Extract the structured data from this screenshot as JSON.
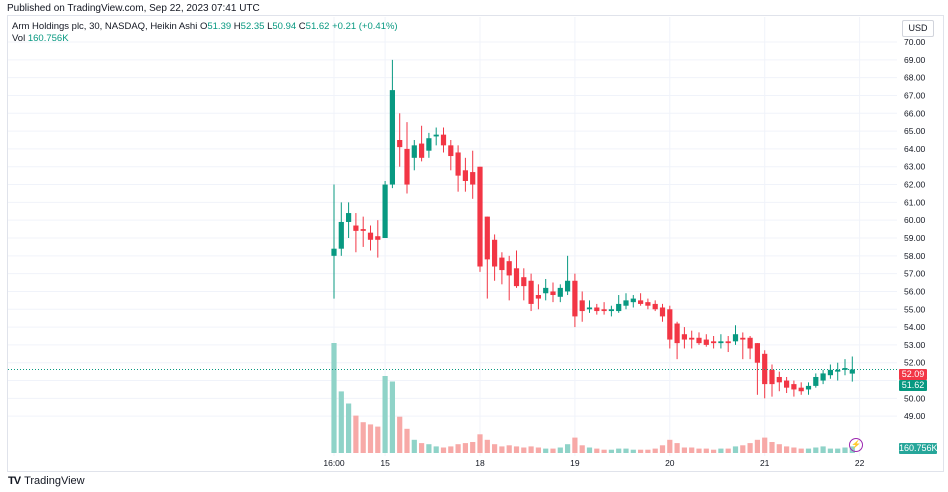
{
  "header": {
    "published": "Published on TradingView.com, Sep 22, 2023 07:41 UTC"
  },
  "legend": {
    "symbol": "Arm Holdings plc, 30, NASDAQ, Heikin Ashi",
    "o_label": "O",
    "o_value": "51.39",
    "h_label": "H",
    "h_value": "52.35",
    "l_label": "L",
    "l_value": "50.94",
    "c_label": "C",
    "c_value": "51.62",
    "change": "+0.21 (+0.41%)",
    "vol_label": "Vol",
    "vol_value": "160.756K"
  },
  "price_scale": {
    "currency": "USD",
    "prev_close_tag": "52.09",
    "last_price_tag": "51.62",
    "volume_tag": "160.756K"
  },
  "footer": {
    "brand": "TradingView",
    "brand_logo": "TV"
  },
  "colors": {
    "up": "#089981",
    "down": "#f23645",
    "vol_up": "#8fd3c8",
    "vol_down": "#f7a9a7",
    "grid": "#f0f3fa"
  },
  "icons": {
    "flash": "lightning-icon"
  },
  "chart_data": {
    "type": "candlestick",
    "title": "Arm Holdings plc, 30, NASDAQ, Heikin Ashi",
    "ylim": [
      48.0,
      70.0
    ],
    "y_ticks": [
      "49.00",
      "50.00",
      "51.00",
      "52.00",
      "53.00",
      "54.00",
      "55.00",
      "56.00",
      "57.00",
      "58.00",
      "59.00",
      "60.00",
      "61.00",
      "62.00",
      "63.00",
      "64.00",
      "65.00",
      "66.00",
      "67.00",
      "68.00",
      "69.00",
      "70.00"
    ],
    "x_ticks": [
      {
        "label": "16:00",
        "index": 0
      },
      {
        "label": "15",
        "index": 7
      },
      {
        "label": "18",
        "index": 20
      },
      {
        "label": "19",
        "index": 33
      },
      {
        "label": "20",
        "index": 46
      },
      {
        "label": "21",
        "index": 59
      },
      {
        "label": "22",
        "index": 72
      }
    ],
    "candles": [
      {
        "o": 58.0,
        "h": 62.0,
        "l": 55.6,
        "c": 58.4,
        "v": 1.0
      },
      {
        "o": 58.4,
        "h": 61.0,
        "l": 58.0,
        "c": 59.9,
        "v": 0.56
      },
      {
        "o": 59.9,
        "h": 61.0,
        "l": 59.0,
        "c": 60.4,
        "v": 0.45
      },
      {
        "o": 59.7,
        "h": 60.4,
        "l": 58.2,
        "c": 59.4,
        "v": 0.34
      },
      {
        "o": 59.5,
        "h": 60.2,
        "l": 58.5,
        "c": 59.4,
        "v": 0.28
      },
      {
        "o": 59.3,
        "h": 59.7,
        "l": 58.3,
        "c": 58.9,
        "v": 0.26
      },
      {
        "o": 59.1,
        "h": 60.0,
        "l": 57.9,
        "c": 58.9,
        "v": 0.24
      },
      {
        "o": 59.0,
        "h": 62.2,
        "l": 59.0,
        "c": 62.0,
        "v": 0.7
      },
      {
        "o": 62.0,
        "h": 69.0,
        "l": 61.8,
        "c": 67.3,
        "v": 0.65
      },
      {
        "o": 64.5,
        "h": 66.0,
        "l": 63.0,
        "c": 64.1,
        "v": 0.33
      },
      {
        "o": 64.0,
        "h": 65.5,
        "l": 61.5,
        "c": 62.0,
        "v": 0.22
      },
      {
        "o": 63.5,
        "h": 64.5,
        "l": 62.8,
        "c": 64.2,
        "v": 0.12
      },
      {
        "o": 64.3,
        "h": 65.3,
        "l": 63.3,
        "c": 63.5,
        "v": 0.09
      },
      {
        "o": 63.9,
        "h": 64.9,
        "l": 63.5,
        "c": 64.6,
        "v": 0.08
      },
      {
        "o": 64.7,
        "h": 65.2,
        "l": 64.2,
        "c": 64.8,
        "v": 0.06
      },
      {
        "o": 64.8,
        "h": 65.2,
        "l": 63.8,
        "c": 64.2,
        "v": 0.05
      },
      {
        "o": 64.2,
        "h": 64.5,
        "l": 62.8,
        "c": 63.6,
        "v": 0.06
      },
      {
        "o": 63.8,
        "h": 64.2,
        "l": 61.6,
        "c": 62.5,
        "v": 0.08
      },
      {
        "o": 62.8,
        "h": 63.5,
        "l": 61.6,
        "c": 62.2,
        "v": 0.09
      },
      {
        "o": 62.7,
        "h": 63.9,
        "l": 61.2,
        "c": 62.0,
        "v": 0.1
      },
      {
        "o": 63.0,
        "h": 63.0,
        "l": 57.1,
        "c": 57.4,
        "v": 0.17
      },
      {
        "o": 60.2,
        "h": 60.2,
        "l": 55.6,
        "c": 57.8,
        "v": 0.12
      },
      {
        "o": 58.9,
        "h": 59.2,
        "l": 56.6,
        "c": 57.4,
        "v": 0.08
      },
      {
        "o": 57.9,
        "h": 58.2,
        "l": 56.4,
        "c": 57.2,
        "v": 0.06
      },
      {
        "o": 57.7,
        "h": 58.0,
        "l": 55.5,
        "c": 56.9,
        "v": 0.07
      },
      {
        "o": 57.3,
        "h": 58.3,
        "l": 56.2,
        "c": 56.3,
        "v": 0.06
      },
      {
        "o": 56.8,
        "h": 57.3,
        "l": 55.5,
        "c": 56.3,
        "v": 0.05
      },
      {
        "o": 56.6,
        "h": 57.0,
        "l": 54.9,
        "c": 55.3,
        "v": 0.06
      },
      {
        "o": 55.8,
        "h": 56.4,
        "l": 55.0,
        "c": 55.6,
        "v": 0.05
      },
      {
        "o": 55.9,
        "h": 56.7,
        "l": 55.5,
        "c": 56.2,
        "v": 0.04
      },
      {
        "o": 56.0,
        "h": 56.5,
        "l": 55.4,
        "c": 55.8,
        "v": 0.04
      },
      {
        "o": 55.7,
        "h": 56.4,
        "l": 55.4,
        "c": 56.2,
        "v": 0.05
      },
      {
        "o": 56.0,
        "h": 58.0,
        "l": 55.8,
        "c": 56.6,
        "v": 0.08
      },
      {
        "o": 56.6,
        "h": 57.0,
        "l": 54.0,
        "c": 54.6,
        "v": 0.14
      },
      {
        "o": 55.5,
        "h": 56.0,
        "l": 54.3,
        "c": 54.9,
        "v": 0.07
      },
      {
        "o": 55.0,
        "h": 55.5,
        "l": 54.8,
        "c": 55.1,
        "v": 0.05
      },
      {
        "o": 55.1,
        "h": 55.3,
        "l": 54.7,
        "c": 54.9,
        "v": 0.04
      },
      {
        "o": 55.0,
        "h": 55.4,
        "l": 54.7,
        "c": 54.9,
        "v": 0.03
      },
      {
        "o": 54.9,
        "h": 55.2,
        "l": 54.6,
        "c": 55.0,
        "v": 0.03
      },
      {
        "o": 54.9,
        "h": 55.8,
        "l": 54.8,
        "c": 55.3,
        "v": 0.04
      },
      {
        "o": 55.2,
        "h": 55.9,
        "l": 55.0,
        "c": 55.5,
        "v": 0.04
      },
      {
        "o": 55.4,
        "h": 55.8,
        "l": 55.1,
        "c": 55.6,
        "v": 0.03
      },
      {
        "o": 55.5,
        "h": 55.9,
        "l": 55.2,
        "c": 55.3,
        "v": 0.03
      },
      {
        "o": 55.4,
        "h": 55.6,
        "l": 55.0,
        "c": 55.2,
        "v": 0.03
      },
      {
        "o": 55.3,
        "h": 55.5,
        "l": 54.9,
        "c": 55.0,
        "v": 0.04
      },
      {
        "o": 55.1,
        "h": 55.3,
        "l": 54.3,
        "c": 54.6,
        "v": 0.07
      },
      {
        "o": 55.0,
        "h": 55.2,
        "l": 52.8,
        "c": 53.3,
        "v": 0.12
      },
      {
        "o": 54.2,
        "h": 54.3,
        "l": 52.2,
        "c": 53.1,
        "v": 0.09
      },
      {
        "o": 53.6,
        "h": 54.0,
        "l": 52.8,
        "c": 53.3,
        "v": 0.05
      },
      {
        "o": 53.4,
        "h": 53.8,
        "l": 52.8,
        "c": 53.3,
        "v": 0.05
      },
      {
        "o": 53.4,
        "h": 53.7,
        "l": 53.0,
        "c": 53.1,
        "v": 0.04
      },
      {
        "o": 53.3,
        "h": 53.6,
        "l": 52.9,
        "c": 53.0,
        "v": 0.04
      },
      {
        "o": 53.2,
        "h": 53.5,
        "l": 52.8,
        "c": 53.1,
        "v": 0.03
      },
      {
        "o": 53.1,
        "h": 53.6,
        "l": 52.8,
        "c": 53.2,
        "v": 0.04
      },
      {
        "o": 53.2,
        "h": 53.5,
        "l": 52.6,
        "c": 53.1,
        "v": 0.04
      },
      {
        "o": 53.2,
        "h": 54.1,
        "l": 53.0,
        "c": 53.6,
        "v": 0.06
      },
      {
        "o": 53.4,
        "h": 53.7,
        "l": 52.2,
        "c": 53.3,
        "v": 0.07
      },
      {
        "o": 53.4,
        "h": 53.5,
        "l": 52.2,
        "c": 52.8,
        "v": 0.09
      },
      {
        "o": 53.1,
        "h": 53.1,
        "l": 50.2,
        "c": 52.0,
        "v": 0.12
      },
      {
        "o": 52.5,
        "h": 52.7,
        "l": 50.0,
        "c": 50.8,
        "v": 0.14
      },
      {
        "o": 51.6,
        "h": 51.9,
        "l": 50.1,
        "c": 50.8,
        "v": 0.1
      },
      {
        "o": 51.2,
        "h": 51.5,
        "l": 50.4,
        "c": 50.9,
        "v": 0.08
      },
      {
        "o": 51.0,
        "h": 51.2,
        "l": 50.3,
        "c": 50.6,
        "v": 0.06
      },
      {
        "o": 50.8,
        "h": 51.0,
        "l": 50.1,
        "c": 50.5,
        "v": 0.05
      },
      {
        "o": 50.6,
        "h": 50.9,
        "l": 50.2,
        "c": 50.4,
        "v": 0.04
      },
      {
        "o": 50.5,
        "h": 50.9,
        "l": 50.2,
        "c": 50.7,
        "v": 0.04
      },
      {
        "o": 50.7,
        "h": 51.4,
        "l": 50.6,
        "c": 51.2,
        "v": 0.05
      },
      {
        "o": 51.0,
        "h": 51.6,
        "l": 50.8,
        "c": 51.4,
        "v": 0.06
      },
      {
        "o": 51.3,
        "h": 51.9,
        "l": 51.1,
        "c": 51.6,
        "v": 0.04
      },
      {
        "o": 51.5,
        "h": 52.0,
        "l": 51.0,
        "c": 51.6,
        "v": 0.04
      },
      {
        "o": 51.6,
        "h": 52.2,
        "l": 51.3,
        "c": 51.7,
        "v": 0.05
      },
      {
        "o": 51.39,
        "h": 52.35,
        "l": 50.94,
        "c": 51.62,
        "v": 0.06
      }
    ],
    "last_price": 51.62,
    "prev_close": 52.09,
    "grid": true
  }
}
